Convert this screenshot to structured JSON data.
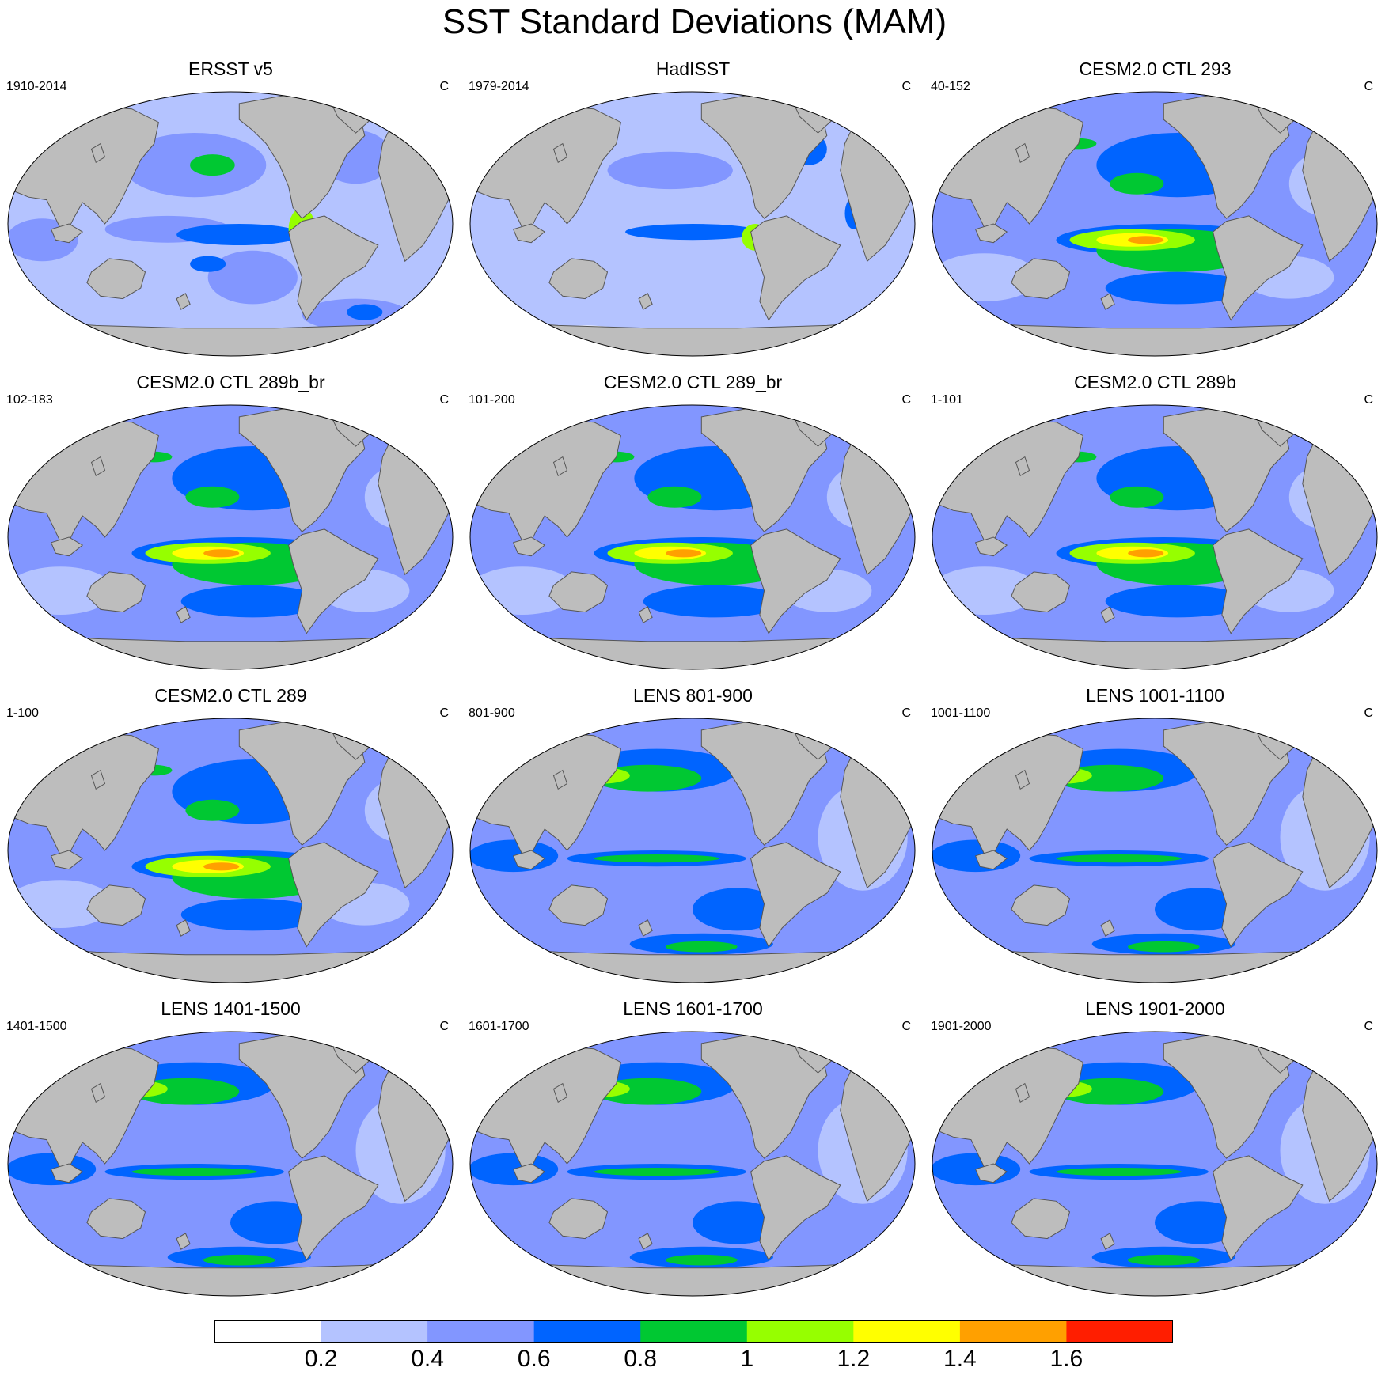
{
  "figure": {
    "title": "SST Standard Deviations (MAM)"
  },
  "panels": [
    {
      "title": "ERSST v5",
      "period": "1910-2014",
      "units": "C"
    },
    {
      "title": "HadISST",
      "period": "1979-2014",
      "units": "C"
    },
    {
      "title": "CESM2.0 CTL 293",
      "period": "40-152",
      "units": "C"
    },
    {
      "title": "CESM2.0 CTL 289b_br",
      "period": "102-183",
      "units": "C"
    },
    {
      "title": "CESM2.0 CTL 289_br",
      "period": "101-200",
      "units": "C"
    },
    {
      "title": "CESM2.0 CTL 289b",
      "period": "1-101",
      "units": "C"
    },
    {
      "title": "CESM2.0 CTL 289",
      "period": "1-100",
      "units": "C"
    },
    {
      "title": "LENS 801-900",
      "period": "801-900",
      "units": "C"
    },
    {
      "title": "LENS 1001-1100",
      "period": "1001-1100",
      "units": "C"
    },
    {
      "title": "LENS 1401-1500",
      "period": "1401-1500",
      "units": "C"
    },
    {
      "title": "LENS 1601-1700",
      "period": "1601-1700",
      "units": "C"
    },
    {
      "title": "LENS 1901-2000",
      "period": "1901-2000",
      "units": "C"
    }
  ],
  "colorbar": {
    "labels": [
      "0.2",
      "0.4",
      "0.6",
      "0.8",
      "1",
      "1.2",
      "1.4",
      "1.6"
    ],
    "colors": [
      "#ffffff",
      "#b4c3ff",
      "#8296ff",
      "#0064ff",
      "#00c832",
      "#96ff00",
      "#ffff00",
      "#ffa000",
      "#ff1e00"
    ]
  },
  "map_colors": {
    "land": "#bdbdbd",
    "coast": "#555555"
  }
}
